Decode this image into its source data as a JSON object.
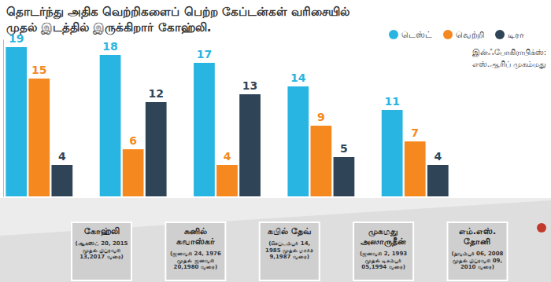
{
  "chart_data": {
    "type": "bar",
    "title": "தொடர்ந்து அதிக வெற்றிகளைப் பெற்ற கேப்டன்கள் வரிசையில் முதல் இடத்தில் இருக்கிறார் கோஹ்லி.",
    "categories": [
      "கோஹ்லி",
      "சுனில் கவாஸ்கர்",
      "கபில் தேவ்",
      "முகமது அஸாருதீன்",
      "எம்.எஸ். தோனி"
    ],
    "periods": [
      "(ஆகஸ்ட் 20, 2015 முதல் பிப்ரவரி 13,2017 வரை)",
      "(ஜனவரி 24, 1976 முதல் ஜனவரி 20,1980 வரை)",
      "(செப்டம்பர் 14, 1985 முதல் மார்ச் 9,1987 வரை)",
      "(ஜனவரி 2, 1993 முதல் டிசம்பர் 05,1994 வரை)",
      "(நவம்பர் 06, 2008 முதல் பிப்ரவரி 09, 2010 வரை)"
    ],
    "series": [
      {
        "name": "டெஸ்ட்",
        "color": "#29b5e1",
        "values": [
          19,
          18,
          17,
          14,
          11
        ]
      },
      {
        "name": "வெற்றி",
        "color": "#f5891f",
        "values": [
          15,
          6,
          4,
          9,
          7
        ]
      },
      {
        "name": "டிரா",
        "color": "#2f4456",
        "values": [
          4,
          12,
          13,
          5,
          4
        ]
      }
    ],
    "annotations": [
      "இன்ஃபோகிராபிக்ஸ்:",
      "எஸ்.ஆரிப் முகம்மது"
    ],
    "ylim": [
      0,
      20
    ],
    "data_labels": true,
    "tick_labels": "x",
    "legend": "top-right",
    "grid": false
  }
}
